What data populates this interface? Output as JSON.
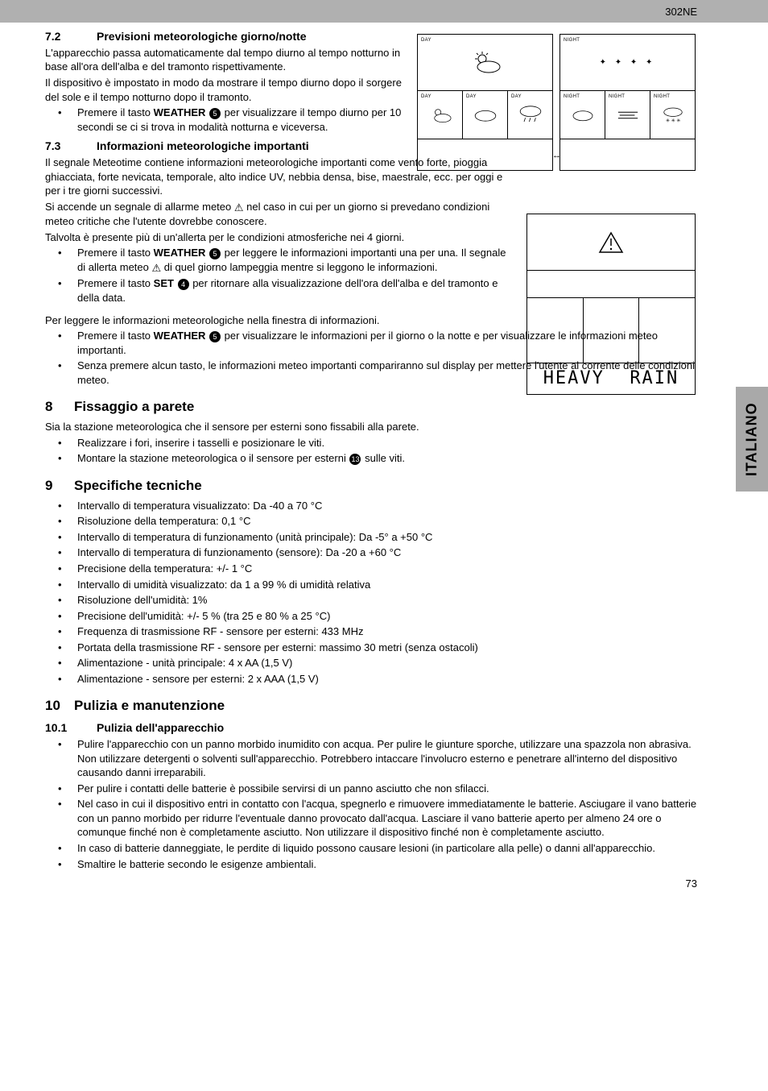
{
  "model": "302NE",
  "sidetab": "ITALIANO",
  "page_number": "73",
  "s72": {
    "num": "7.2",
    "title": "Previsioni meteorologiche giorno/notte",
    "p1": "L'apparecchio passa automaticamente dal tempo diurno al tempo notturno in base all'ora dell'alba e del tramonto rispettivamente.",
    "p2": "Il dispositivo è impostato in modo da mostrare il tempo diurno dopo il sorgere del sole e il tempo notturno dopo il tramonto.",
    "li1a": "Premere il tasto ",
    "weather": "WEATHER",
    "badge5": "5",
    "li1b": " per visualizzare il tempo diurno per 10 secondi se ci si trova in modalità notturna e viceversa."
  },
  "s73": {
    "num": "7.3",
    "title": "Informazioni meteorologiche importanti",
    "p1": "Il segnale Meteotime contiene informazioni meteorologiche importanti come vento forte, pioggia ghiacciata, forte nevicata, temporale, alto indice UV, nebbia densa, bise, maestrale, ecc. per oggi e per i tre giorni successivi.",
    "p2a": "Si accende un segnale di allarme meteo ",
    "p2b": " nel caso in cui per un giorno si prevedano condizioni meteo critiche che l'utente dovrebbe conoscere.",
    "p3": "Talvolta è presente più di un'allerta per le condizioni atmosferiche nei 4 giorni.",
    "li1a": "Premere il tasto ",
    "li1b": " per leggere le informazioni importanti una per una. Il segnale di allerta meteo ",
    "li1c": " di quel giorno lampeggia mentre si leggono le informazioni.",
    "li2a": "Premere il tasto ",
    "set": "SET",
    "badge4": "4",
    "li2b": " per ritornare alla visualizzazione dell'ora dell'alba e del tramonto e della data.",
    "p4": "Per leggere le informazioni meteorologiche nella finestra di informazioni.",
    "li3a": "Premere il tasto ",
    "li3b": " per visualizzare le informazioni per il giorno o la notte e per visualizzare le informazioni meteo importanti.",
    "li4": "Senza premere alcun tasto, le informazioni meteo importanti compariranno sul display per mettere l'utente al corrente delle condizioni meteo."
  },
  "s8": {
    "num": "8",
    "title": "Fissaggio a parete",
    "p1": "Sia la stazione meteorologica che il sensore per esterni sono fissabili alla parete.",
    "li1": "Realizzare i fori, inserire i tasselli e posizionare le viti.",
    "li2a": "Montare la stazione meteorologica o il sensore per esterni ",
    "badge13": "13",
    "li2b": " sulle viti."
  },
  "s9": {
    "num": "9",
    "title": "Specifiche tecniche",
    "items": [
      "Intervallo di temperatura visualizzato: Da -40 a 70 °C",
      "Risoluzione della temperatura: 0,1 °C",
      "Intervallo di temperatura di funzionamento (unità principale): Da -5° a +50 °C",
      "Intervallo di temperatura di funzionamento (sensore): Da -20 a +60 °C",
      "Precisione della temperatura: +/- 1 °C",
      "Intervallo di umidità visualizzato: da 1 a 99 % di umidità relativa",
      "Risoluzione dell'umidità: 1%",
      "Precisione dell'umidità: +/- 5 % (tra 25 e 80 % a 25 °C)",
      "Frequenza di trasmissione RF - sensore per esterni: 433 MHz",
      "Portata della trasmissione RF - sensore per esterni: massimo 30 metri (senza ostacoli)",
      "Alimentazione - unità principale: 4 x AA (1,5 V)",
      "Alimentazione - sensore per esterni: 2 x AAA (1,5 V)"
    ]
  },
  "s10": {
    "num": "10",
    "title": "Pulizia e manutenzione"
  },
  "s101": {
    "num": "10.1",
    "title": "Pulizia dell'apparecchio",
    "items": [
      "Pulire l'apparecchio con un panno morbido inumidito con acqua. Per pulire le giunture sporche, utilizzare una spazzola non abrasiva. Non utilizzare detergenti o solventi sull'apparecchio. Potrebbero intaccare l'involucro esterno e penetrare all'interno del dispositivo causando danni irreparabili.",
      "Per pulire i contatti delle batterie è possibile servirsi di un panno asciutto che non sfilacci.",
      "Nel caso in cui il dispositivo entri in contatto con l'acqua, spegnerlo e rimuovere immediatamente le batterie. Asciugare il vano batterie con un panno morbido per ridurre l'eventuale danno provocato dall'acqua. Lasciare il vano batterie aperto per almeno 24 ore o comunque finché non è completamente asciutto. Non utilizzare il dispositivo finché non è completamente asciutto.",
      "In caso di batterie danneggiate, le perdite di liquido possono causare lesioni (in particolare alla pelle) o danni all'apparecchio.",
      "Smaltire le batterie secondo le esigenze ambientali."
    ]
  },
  "forecast": {
    "day": "DAY",
    "night": "NIGHT"
  },
  "info_panel": {
    "text1": "HEAVY",
    "text2": "RAIN"
  }
}
